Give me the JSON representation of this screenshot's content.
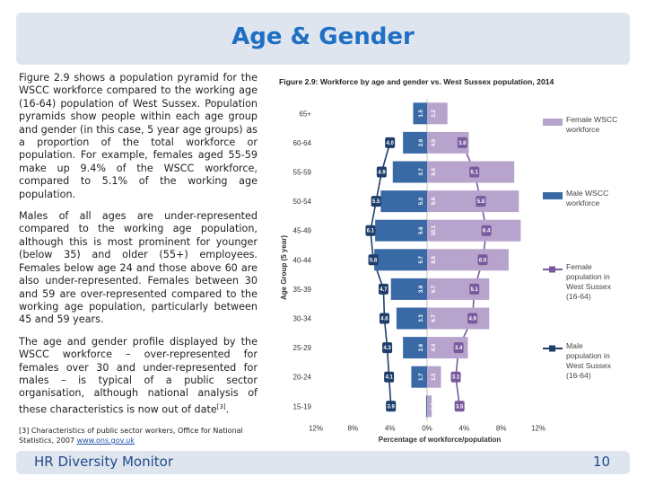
{
  "page": {
    "title": "Age & Gender",
    "paragraphs": [
      "Figure 2.9 shows a population pyramid for the WSCC workforce compared to the working age (16-64) population of West Sussex. Population pyramids show people within each age group and gender (in this case, 5 year age groups) as a proportion of the total workforce or population. For example, females aged 55-59 make up 9.4% of the WSCC workforce, compared to 5.1% of the working age population.",
      "Males of all ages are under-represented compared to the working age population, although this is most prominent for younger (below 35) and older (55+) employees. Females below age 24 and those above 60 are also under-represented. Females between 30 and 59 are over-represented compared to the working age population, particularly between 45 and 59 years.",
      "The age and gender profile displayed by the WSCC workforce – over-represented for females over 30 and under-represented for males – is typical of a public sector organisation, although national analysis of these characteristics is now out of date"
    ],
    "paragraph_ref": "[3]",
    "footnote_text": "[3] Characteristics of public sector workers, Office for National Statistics, 2007 ",
    "footnote_link": "www.ons.gov.uk",
    "footer_left": "HR Diversity Monitor",
    "footer_right": "10"
  },
  "chart_data": {
    "type": "bar",
    "title": "Figure 2.9: Workforce by age and gender vs. West Sussex population, 2014",
    "xlabel": "Percentage of workforce/population",
    "ylabel": "Age Group (5 year)",
    "x_ticks": [
      "12%",
      "8%",
      "4%",
      "0%",
      "4%",
      "8%",
      "12%"
    ],
    "xlim": [
      -12,
      12
    ],
    "categories": [
      "65+",
      "60-64",
      "55-59",
      "50-54",
      "45-49",
      "40-44",
      "35-39",
      "30-34",
      "25-29",
      "20-24",
      "15-19"
    ],
    "series": [
      {
        "name": "Female WSCC workforce",
        "side": "right",
        "color": "#b7a4cc",
        "values": [
          2.2,
          4.5,
          9.4,
          9.9,
          10.1,
          8.8,
          6.7,
          6.7,
          4.4,
          1.5,
          0.5
        ]
      },
      {
        "name": "Male WSCC workforce",
        "side": "left",
        "color": "#3a6aa5",
        "values": [
          1.5,
          2.6,
          3.7,
          5.0,
          5.6,
          5.7,
          3.9,
          3.3,
          2.6,
          1.7,
          0.1
        ]
      },
      {
        "name": "Female population in West Sussex (16-64)",
        "side": "right",
        "color": "#7a5a9e",
        "values": [
          null,
          3.8,
          5.1,
          5.8,
          6.4,
          6.0,
          5.1,
          4.9,
          3.4,
          3.1,
          3.5
        ]
      },
      {
        "name": "Male population in West Sussex (16-64)",
        "side": "left",
        "color": "#1e3f6b",
        "values": [
          null,
          4.0,
          4.9,
          5.5,
          6.1,
          5.8,
          4.7,
          4.6,
          4.3,
          4.1,
          3.9
        ]
      }
    ],
    "legend_placement": "right",
    "grid": false
  }
}
